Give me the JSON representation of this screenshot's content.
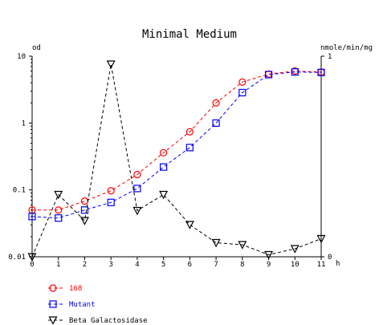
{
  "chart_data": {
    "type": "line",
    "title": "Minimal Medium",
    "xlabel": "h",
    "ylabel": "od",
    "y2label": "nmole/min/mg",
    "x": [
      0,
      1,
      2,
      3,
      4,
      5,
      6,
      7,
      8,
      9,
      10,
      11
    ],
    "x_tick_labels": [
      "0",
      "1",
      "2",
      "3",
      "4",
      "5",
      "6",
      "7",
      "8",
      "9",
      "10",
      "11"
    ],
    "xlim": [
      0,
      11
    ],
    "y_scale": "log",
    "ylim": [
      0.01,
      10
    ],
    "y_tick_labels": [
      "0.01",
      "0.1",
      "1",
      "10"
    ],
    "y_tick_values": [
      0.01,
      0.1,
      1,
      10
    ],
    "y2lim": [
      0,
      1
    ],
    "y2_tick_labels": [
      "0",
      "1"
    ],
    "y2_tick_values": [
      0,
      1
    ],
    "grid": false,
    "legend_position": "bottom-left",
    "series": [
      {
        "name": "168",
        "color": "#ff0000",
        "marker": "circle",
        "axis": "left",
        "values": [
          0.05,
          0.05,
          0.068,
          0.097,
          0.17,
          0.36,
          0.74,
          2.0,
          4.1,
          5.4,
          6.0,
          5.8
        ]
      },
      {
        "name": "Mutant",
        "color": "#0000ff",
        "marker": "square",
        "axis": "left",
        "values": [
          0.04,
          0.038,
          0.05,
          0.065,
          0.105,
          0.22,
          0.43,
          1.0,
          2.85,
          5.3,
          5.8,
          5.7
        ]
      },
      {
        "name": "Beta Galactosidase",
        "color": "#000000",
        "marker": "triangle-down",
        "axis": "right",
        "values": [
          0.0,
          0.31,
          0.18,
          0.96,
          0.23,
          0.31,
          0.16,
          0.07,
          0.06,
          0.01,
          0.04,
          0.09
        ]
      }
    ]
  }
}
